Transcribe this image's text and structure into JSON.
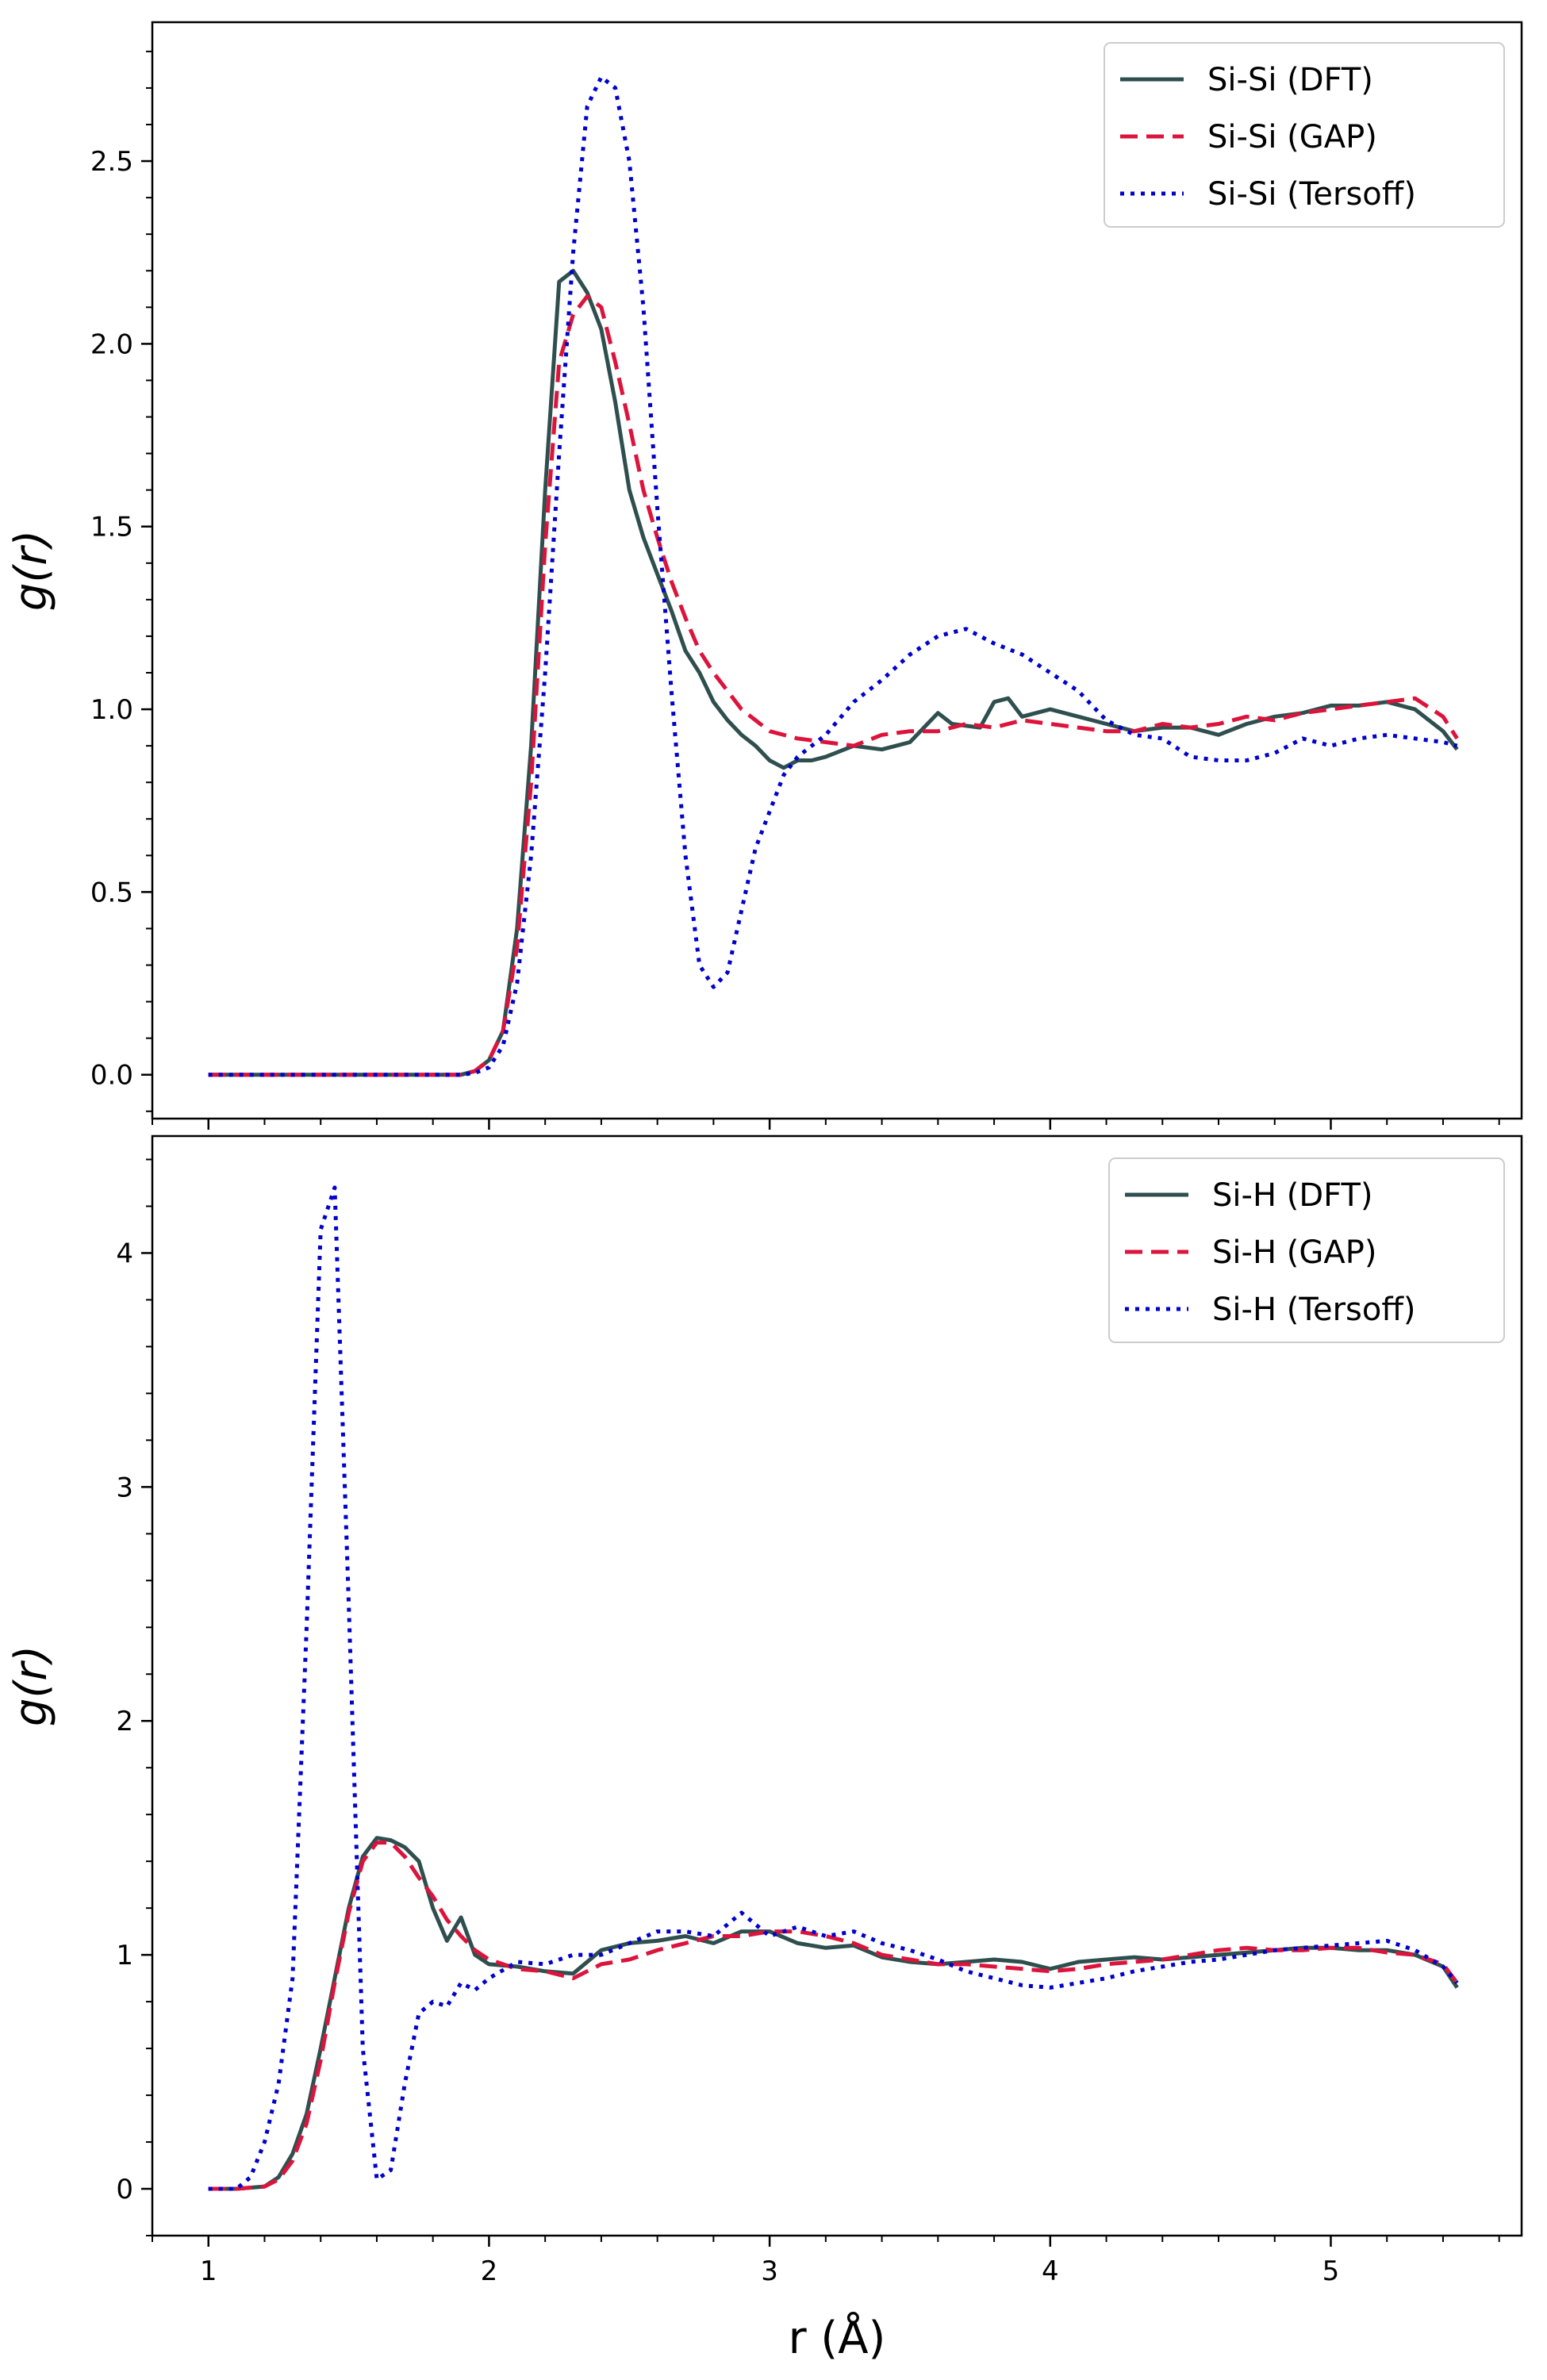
{
  "chart_data": [
    {
      "type": "line",
      "title": "",
      "xlabel": "",
      "ylabel": "g(r)",
      "xlim": [
        0.8,
        5.68
      ],
      "ylim": [
        -0.12,
        2.88
      ],
      "yticks": [
        0.0,
        0.5,
        1.0,
        1.5,
        2.0,
        2.5
      ],
      "ytick_labels": [
        "0.0",
        "0.5",
        "1.0",
        "1.5",
        "2.0",
        "2.5"
      ],
      "xticks": [
        1,
        2,
        3,
        4,
        5
      ],
      "xtick_labels": [],
      "legend_position": "top-right",
      "series": [
        {
          "name": "Si-Si (DFT)",
          "color": "#2f4f4f",
          "dash": "solid",
          "x": [
            1.0,
            1.5,
            1.9,
            1.95,
            2.0,
            2.05,
            2.1,
            2.15,
            2.2,
            2.25,
            2.3,
            2.35,
            2.4,
            2.45,
            2.5,
            2.55,
            2.6,
            2.65,
            2.7,
            2.75,
            2.8,
            2.85,
            2.9,
            2.95,
            3.0,
            3.05,
            3.1,
            3.15,
            3.2,
            3.3,
            3.4,
            3.5,
            3.6,
            3.65,
            3.75,
            3.8,
            3.85,
            3.9,
            4.0,
            4.1,
            4.2,
            4.3,
            4.4,
            4.5,
            4.6,
            4.7,
            4.8,
            4.9,
            5.0,
            5.1,
            5.2,
            5.3,
            5.4,
            5.45
          ],
          "y": [
            0.0,
            0.0,
            0.0,
            0.01,
            0.04,
            0.12,
            0.4,
            0.9,
            1.6,
            2.17,
            2.2,
            2.14,
            2.04,
            1.84,
            1.6,
            1.47,
            1.37,
            1.27,
            1.16,
            1.1,
            1.02,
            0.97,
            0.93,
            0.9,
            0.86,
            0.84,
            0.86,
            0.86,
            0.87,
            0.9,
            0.89,
            0.91,
            0.99,
            0.96,
            0.95,
            1.02,
            1.03,
            0.98,
            1.0,
            0.98,
            0.96,
            0.94,
            0.95,
            0.95,
            0.93,
            0.96,
            0.98,
            0.99,
            1.01,
            1.01,
            1.02,
            1.0,
            0.94,
            0.89
          ]
        },
        {
          "name": "Si-Si (GAP)",
          "color": "#dc143c",
          "dash": "dashed",
          "x": [
            1.0,
            1.5,
            1.9,
            1.95,
            2.0,
            2.05,
            2.1,
            2.15,
            2.2,
            2.25,
            2.3,
            2.35,
            2.4,
            2.45,
            2.5,
            2.55,
            2.6,
            2.65,
            2.7,
            2.75,
            2.8,
            2.85,
            2.9,
            2.95,
            3.0,
            3.1,
            3.2,
            3.3,
            3.4,
            3.5,
            3.6,
            3.7,
            3.8,
            3.9,
            4.0,
            4.1,
            4.2,
            4.3,
            4.4,
            4.5,
            4.6,
            4.7,
            4.8,
            4.9,
            5.0,
            5.1,
            5.2,
            5.3,
            5.4,
            5.45
          ],
          "y": [
            0.0,
            0.0,
            0.0,
            0.01,
            0.04,
            0.12,
            0.35,
            0.8,
            1.45,
            1.95,
            2.08,
            2.13,
            2.1,
            1.95,
            1.78,
            1.6,
            1.47,
            1.35,
            1.25,
            1.16,
            1.1,
            1.05,
            1.0,
            0.97,
            0.94,
            0.92,
            0.91,
            0.9,
            0.93,
            0.94,
            0.94,
            0.96,
            0.95,
            0.97,
            0.96,
            0.95,
            0.94,
            0.94,
            0.96,
            0.95,
            0.96,
            0.98,
            0.97,
            0.99,
            1.0,
            1.01,
            1.02,
            1.03,
            0.98,
            0.92
          ]
        },
        {
          "name": "Si-Si (Tersoff)",
          "color": "#0000cd",
          "dash": "dotted",
          "x": [
            1.0,
            1.5,
            1.9,
            1.95,
            2.0,
            2.05,
            2.1,
            2.15,
            2.2,
            2.25,
            2.3,
            2.35,
            2.4,
            2.45,
            2.5,
            2.55,
            2.6,
            2.65,
            2.7,
            2.75,
            2.8,
            2.85,
            2.9,
            2.95,
            3.0,
            3.05,
            3.1,
            3.2,
            3.3,
            3.4,
            3.5,
            3.6,
            3.7,
            3.8,
            3.9,
            4.0,
            4.1,
            4.2,
            4.3,
            4.4,
            4.5,
            4.6,
            4.7,
            4.8,
            4.9,
            5.0,
            5.1,
            5.2,
            5.3,
            5.4,
            5.45
          ],
          "y": [
            0.0,
            0.0,
            0.0,
            0.005,
            0.02,
            0.08,
            0.25,
            0.6,
            1.1,
            1.7,
            2.25,
            2.65,
            2.73,
            2.7,
            2.5,
            2.1,
            1.55,
            1.05,
            0.6,
            0.3,
            0.24,
            0.28,
            0.45,
            0.62,
            0.72,
            0.82,
            0.87,
            0.93,
            1.02,
            1.08,
            1.15,
            1.2,
            1.22,
            1.18,
            1.15,
            1.1,
            1.05,
            0.97,
            0.93,
            0.92,
            0.87,
            0.86,
            0.86,
            0.88,
            0.92,
            0.9,
            0.92,
            0.93,
            0.92,
            0.91,
            0.9
          ]
        }
      ]
    },
    {
      "type": "line",
      "title": "",
      "xlabel": "r (Å)",
      "ylabel": "g(r)",
      "xlim": [
        0.8,
        5.68
      ],
      "ylim": [
        -0.2,
        4.5
      ],
      "yticks": [
        0,
        1,
        2,
        3,
        4
      ],
      "ytick_labels": [
        "0",
        "1",
        "2",
        "3",
        "4"
      ],
      "xticks": [
        1,
        2,
        3,
        4,
        5
      ],
      "xtick_labels": [
        "1",
        "2",
        "3",
        "4",
        "5"
      ],
      "legend_position": "top-right",
      "series": [
        {
          "name": "Si-H (DFT)",
          "color": "#2f4f4f",
          "dash": "solid",
          "x": [
            1.0,
            1.1,
            1.2,
            1.25,
            1.3,
            1.35,
            1.4,
            1.45,
            1.5,
            1.55,
            1.6,
            1.65,
            1.7,
            1.75,
            1.8,
            1.85,
            1.9,
            1.95,
            2.0,
            2.1,
            2.2,
            2.3,
            2.4,
            2.5,
            2.6,
            2.7,
            2.8,
            2.9,
            3.0,
            3.1,
            3.2,
            3.3,
            3.4,
            3.5,
            3.6,
            3.7,
            3.8,
            3.9,
            4.0,
            4.1,
            4.2,
            4.3,
            4.4,
            4.5,
            4.6,
            4.7,
            4.8,
            4.9,
            5.0,
            5.1,
            5.2,
            5.3,
            5.4,
            5.45
          ],
          "y": [
            0.0,
            0.0,
            0.01,
            0.05,
            0.15,
            0.32,
            0.6,
            0.9,
            1.2,
            1.42,
            1.5,
            1.49,
            1.46,
            1.4,
            1.2,
            1.06,
            1.16,
            1.0,
            0.96,
            0.95,
            0.93,
            0.92,
            1.02,
            1.05,
            1.06,
            1.08,
            1.05,
            1.1,
            1.1,
            1.05,
            1.03,
            1.04,
            0.99,
            0.97,
            0.96,
            0.97,
            0.98,
            0.97,
            0.94,
            0.97,
            0.98,
            0.99,
            0.98,
            0.99,
            1.0,
            1.01,
            1.02,
            1.03,
            1.03,
            1.02,
            1.02,
            1.0,
            0.95,
            0.86
          ]
        },
        {
          "name": "Si-H (GAP)",
          "color": "#dc143c",
          "dash": "dashed",
          "x": [
            1.0,
            1.1,
            1.2,
            1.25,
            1.3,
            1.35,
            1.4,
            1.45,
            1.5,
            1.55,
            1.6,
            1.65,
            1.7,
            1.75,
            1.8,
            1.85,
            1.9,
            1.95,
            2.0,
            2.1,
            2.2,
            2.3,
            2.4,
            2.5,
            2.6,
            2.7,
            2.8,
            2.9,
            3.0,
            3.1,
            3.2,
            3.3,
            3.4,
            3.5,
            3.6,
            3.7,
            3.8,
            3.9,
            4.0,
            4.1,
            4.2,
            4.3,
            4.4,
            4.5,
            4.6,
            4.7,
            4.8,
            4.9,
            5.0,
            5.1,
            5.2,
            5.3,
            5.4,
            5.45
          ],
          "y": [
            0.0,
            0.0,
            0.01,
            0.04,
            0.12,
            0.28,
            0.55,
            0.88,
            1.18,
            1.4,
            1.48,
            1.48,
            1.42,
            1.33,
            1.25,
            1.15,
            1.08,
            1.02,
            0.98,
            0.94,
            0.93,
            0.9,
            0.96,
            0.98,
            1.02,
            1.05,
            1.08,
            1.08,
            1.1,
            1.1,
            1.08,
            1.05,
            1.0,
            0.98,
            0.96,
            0.96,
            0.95,
            0.94,
            0.93,
            0.94,
            0.96,
            0.97,
            0.98,
            1.0,
            1.02,
            1.03,
            1.02,
            1.02,
            1.03,
            1.03,
            1.01,
            1.0,
            0.96,
            0.88
          ]
        },
        {
          "name": "Si-H (Tersoff)",
          "color": "#0000cd",
          "dash": "dotted",
          "x": [
            1.0,
            1.1,
            1.15,
            1.2,
            1.25,
            1.3,
            1.35,
            1.4,
            1.45,
            1.5,
            1.55,
            1.6,
            1.65,
            1.7,
            1.75,
            1.8,
            1.85,
            1.9,
            1.95,
            2.0,
            2.1,
            2.2,
            2.3,
            2.4,
            2.5,
            2.6,
            2.7,
            2.8,
            2.9,
            3.0,
            3.1,
            3.2,
            3.3,
            3.4,
            3.5,
            3.6,
            3.7,
            3.8,
            3.9,
            4.0,
            4.1,
            4.2,
            4.3,
            4.4,
            4.5,
            4.6,
            4.7,
            4.8,
            4.9,
            5.0,
            5.1,
            5.2,
            5.3,
            5.4,
            5.45
          ],
          "y": [
            0.0,
            0.0,
            0.05,
            0.2,
            0.45,
            0.9,
            2.4,
            4.1,
            4.28,
            2.5,
            0.6,
            0.04,
            0.08,
            0.45,
            0.75,
            0.8,
            0.78,
            0.88,
            0.85,
            0.9,
            0.97,
            0.96,
            1.0,
            1.0,
            1.05,
            1.1,
            1.1,
            1.08,
            1.18,
            1.08,
            1.12,
            1.08,
            1.1,
            1.05,
            1.02,
            0.98,
            0.93,
            0.9,
            0.87,
            0.86,
            0.88,
            0.9,
            0.93,
            0.95,
            0.97,
            0.98,
            1.0,
            1.02,
            1.03,
            1.04,
            1.05,
            1.06,
            1.02,
            0.95,
            0.88
          ]
        }
      ]
    }
  ]
}
